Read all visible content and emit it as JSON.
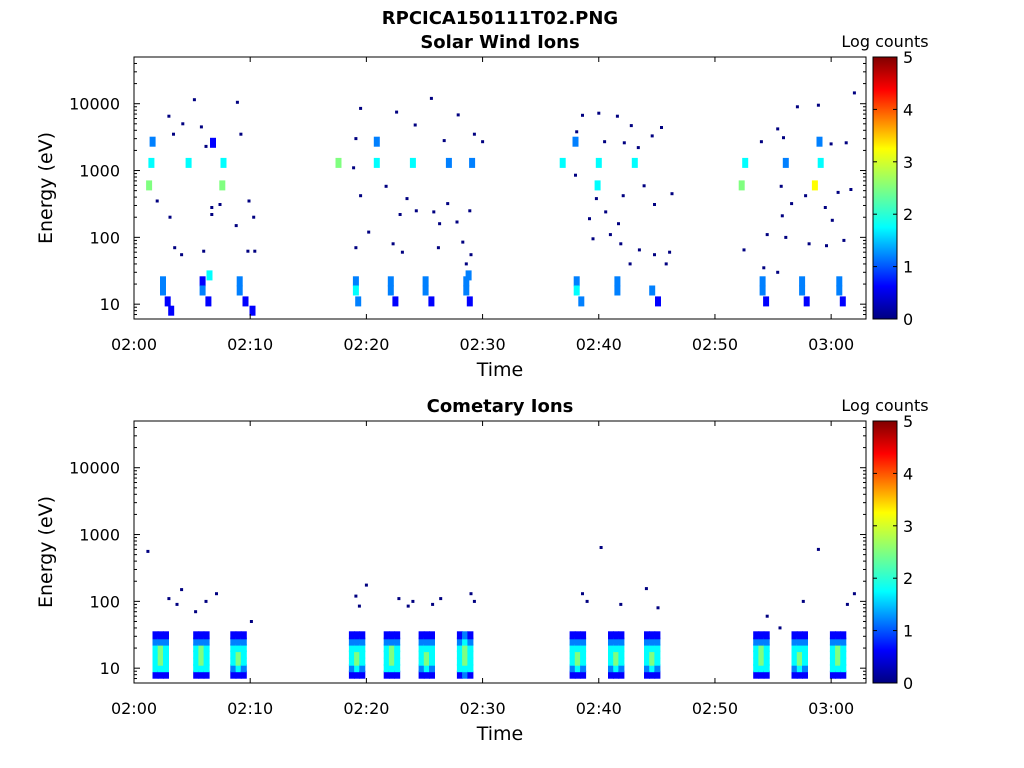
{
  "figure_title": "RPCICA150111T02.PNG",
  "colormap": [
    "#000080",
    "#0000ff",
    "#0080ff",
    "#00ffff",
    "#80ff80",
    "#ffff00",
    "#ff8000",
    "#ff0000",
    "#800000"
  ],
  "chart_data": [
    {
      "type": "heatmap",
      "title": "Solar Wind Ions",
      "xlabel": "Time",
      "ylabel": "Energy (eV)",
      "yscale": "log",
      "ylim": [
        6,
        50000
      ],
      "xlim_minutes": [
        0,
        63
      ],
      "x_tick_labels": [
        "02:00",
        "02:10",
        "02:20",
        "02:30",
        "02:40",
        "02:50",
        "03:00"
      ],
      "y_tick_labels": [
        "10",
        "100",
        "1000",
        "10000"
      ],
      "colorbar_label": "Log counts",
      "colorbar_range": [
        0,
        5
      ],
      "colorbar_ticks": [
        "0",
        "1",
        "2",
        "3",
        "4",
        "5"
      ],
      "cells": [
        {
          "t": 2.5,
          "e": 22,
          "v": 1.0
        },
        {
          "t": 2.5,
          "e": 16,
          "v": 1.2
        },
        {
          "t": 2.9,
          "e": 11,
          "v": 0.6
        },
        {
          "t": 3.2,
          "e": 8,
          "v": 0.9
        },
        {
          "t": 5.9,
          "e": 22,
          "v": 0.9
        },
        {
          "t": 5.9,
          "e": 16,
          "v": 1.1
        },
        {
          "t": 6.4,
          "e": 11,
          "v": 0.7
        },
        {
          "t": 6.5,
          "e": 27,
          "v": 2.0
        },
        {
          "t": 9.1,
          "e": 22,
          "v": 1.0
        },
        {
          "t": 9.1,
          "e": 16,
          "v": 1.3
        },
        {
          "t": 9.6,
          "e": 11,
          "v": 0.6
        },
        {
          "t": 10.2,
          "e": 8,
          "v": 0.5
        },
        {
          "t": 19.1,
          "e": 22,
          "v": 1.1
        },
        {
          "t": 19.1,
          "e": 16,
          "v": 1.9
        },
        {
          "t": 19.3,
          "e": 11,
          "v": 1.2
        },
        {
          "t": 22.1,
          "e": 22,
          "v": 1.0
        },
        {
          "t": 22.1,
          "e": 16,
          "v": 1.3
        },
        {
          "t": 22.5,
          "e": 11,
          "v": 0.6
        },
        {
          "t": 25.1,
          "e": 22,
          "v": 1.0
        },
        {
          "t": 25.1,
          "e": 16,
          "v": 1.2
        },
        {
          "t": 25.6,
          "e": 11,
          "v": 0.8
        },
        {
          "t": 28.6,
          "e": 22,
          "v": 1.0
        },
        {
          "t": 28.6,
          "e": 16,
          "v": 1.2
        },
        {
          "t": 28.9,
          "e": 11,
          "v": 0.9
        },
        {
          "t": 28.8,
          "e": 27,
          "v": 1.4
        },
        {
          "t": 38.1,
          "e": 22,
          "v": 1.1
        },
        {
          "t": 38.1,
          "e": 16,
          "v": 1.9
        },
        {
          "t": 38.5,
          "e": 11,
          "v": 1.1
        },
        {
          "t": 41.6,
          "e": 22,
          "v": 1.0
        },
        {
          "t": 41.6,
          "e": 16,
          "v": 1.2
        },
        {
          "t": 44.6,
          "e": 16,
          "v": 1.0
        },
        {
          "t": 45.1,
          "e": 11,
          "v": 0.6
        },
        {
          "t": 54.1,
          "e": 22,
          "v": 1.0
        },
        {
          "t": 54.1,
          "e": 16,
          "v": 1.3
        },
        {
          "t": 54.4,
          "e": 11,
          "v": 0.8
        },
        {
          "t": 57.5,
          "e": 22,
          "v": 1.0
        },
        {
          "t": 57.5,
          "e": 16,
          "v": 1.2
        },
        {
          "t": 57.9,
          "e": 11,
          "v": 0.6
        },
        {
          "t": 60.7,
          "e": 22,
          "v": 1.0
        },
        {
          "t": 60.7,
          "e": 16,
          "v": 1.4
        },
        {
          "t": 61.0,
          "e": 11,
          "v": 0.8
        },
        {
          "t": 1.5,
          "e": 1300,
          "v": 2.0
        },
        {
          "t": 1.3,
          "e": 600,
          "v": 2.4
        },
        {
          "t": 1.6,
          "e": 2700,
          "v": 1.0
        },
        {
          "t": 4.7,
          "e": 1300,
          "v": 1.8
        },
        {
          "t": 7.7,
          "e": 1300,
          "v": 1.7
        },
        {
          "t": 7.6,
          "e": 600,
          "v": 2.2
        },
        {
          "t": 6.8,
          "e": 2600,
          "v": 0.7
        },
        {
          "t": 17.6,
          "e": 1300,
          "v": 2.2
        },
        {
          "t": 20.9,
          "e": 1300,
          "v": 1.9
        },
        {
          "t": 20.9,
          "e": 2700,
          "v": 1.0
        },
        {
          "t": 24.0,
          "e": 1300,
          "v": 1.7
        },
        {
          "t": 27.1,
          "e": 1300,
          "v": 1.1
        },
        {
          "t": 29.1,
          "e": 1300,
          "v": 1.3
        },
        {
          "t": 36.9,
          "e": 1300,
          "v": 2.0
        },
        {
          "t": 38.0,
          "e": 2700,
          "v": 1.1
        },
        {
          "t": 40.0,
          "e": 1300,
          "v": 1.6
        },
        {
          "t": 39.9,
          "e": 600,
          "v": 2.1
        },
        {
          "t": 43.1,
          "e": 1300,
          "v": 1.8
        },
        {
          "t": 52.6,
          "e": 1300,
          "v": 2.0
        },
        {
          "t": 52.3,
          "e": 600,
          "v": 2.6
        },
        {
          "t": 56.1,
          "e": 1300,
          "v": 1.0
        },
        {
          "t": 59.1,
          "e": 1300,
          "v": 1.9
        },
        {
          "t": 59.0,
          "e": 2700,
          "v": 1.1
        },
        {
          "t": 58.6,
          "e": 600,
          "v": 2.9
        }
      ],
      "sparse_points": [
        [
          3,
          6500
        ],
        [
          3.4,
          3500
        ],
        [
          2,
          350
        ],
        [
          3.1,
          200
        ],
        [
          4.2,
          5000
        ],
        [
          5.2,
          11500
        ],
        [
          5.8,
          4500
        ],
        [
          8.9,
          10500
        ],
        [
          9.2,
          3500
        ],
        [
          9.9,
          350
        ],
        [
          10.3,
          200
        ],
        [
          3.5,
          70
        ],
        [
          4.1,
          55
        ],
        [
          6,
          62
        ],
        [
          9.8,
          62
        ],
        [
          10.4,
          62
        ],
        [
          6.7,
          280
        ],
        [
          7.4,
          310
        ],
        [
          6.7,
          220
        ],
        [
          8.8,
          150
        ],
        [
          6.2,
          2300
        ],
        [
          19.1,
          3000
        ],
        [
          19.5,
          8500
        ],
        [
          22.6,
          7500
        ],
        [
          24.2,
          4800
        ],
        [
          25.6,
          12000
        ],
        [
          26.7,
          2800
        ],
        [
          27.9,
          6800
        ],
        [
          29.3,
          3500
        ],
        [
          30.0,
          2700
        ],
        [
          18.9,
          1100
        ],
        [
          19.5,
          420
        ],
        [
          21.7,
          580
        ],
        [
          23.5,
          380
        ],
        [
          22.9,
          220
        ],
        [
          24.3,
          250
        ],
        [
          25.8,
          240
        ],
        [
          26.3,
          160
        ],
        [
          27.0,
          320
        ],
        [
          27.8,
          170
        ],
        [
          28.9,
          250
        ],
        [
          19.1,
          70
        ],
        [
          22.3,
          80
        ],
        [
          23.1,
          60
        ],
        [
          26.2,
          70
        ],
        [
          28.3,
          85
        ],
        [
          29.0,
          55
        ],
        [
          28.6,
          40
        ],
        [
          20.2,
          120
        ],
        [
          38.1,
          3800
        ],
        [
          38.6,
          6700
        ],
        [
          40.0,
          7200
        ],
        [
          41.6,
          6500
        ],
        [
          42.8,
          4700
        ],
        [
          45.4,
          4400
        ],
        [
          44.6,
          3300
        ],
        [
          40.5,
          2700
        ],
        [
          42.2,
          2600
        ],
        [
          43.4,
          2200
        ],
        [
          38.0,
          850
        ],
        [
          39.8,
          380
        ],
        [
          40.6,
          240
        ],
        [
          42.1,
          420
        ],
        [
          43.9,
          590
        ],
        [
          44.8,
          310
        ],
        [
          46.3,
          450
        ],
        [
          39.2,
          190
        ],
        [
          41.7,
          160
        ],
        [
          39.5,
          95
        ],
        [
          41.0,
          110
        ],
        [
          41.9,
          80
        ],
        [
          43.5,
          65
        ],
        [
          44.8,
          55
        ],
        [
          45.8,
          40
        ],
        [
          46.1,
          60
        ],
        [
          42.7,
          40
        ],
        [
          54.0,
          2700
        ],
        [
          55.9,
          3100
        ],
        [
          57.1,
          9000
        ],
        [
          58.9,
          9500
        ],
        [
          60.0,
          2500
        ],
        [
          61.3,
          2600
        ],
        [
          62.0,
          14500
        ],
        [
          55.4,
          4200
        ],
        [
          55.7,
          580
        ],
        [
          56.6,
          320
        ],
        [
          57.8,
          420
        ],
        [
          59.5,
          280
        ],
        [
          60.6,
          470
        ],
        [
          61.7,
          520
        ],
        [
          60.1,
          180
        ],
        [
          55.8,
          210
        ],
        [
          52.5,
          65
        ],
        [
          54.5,
          110
        ],
        [
          56.1,
          100
        ],
        [
          58.1,
          80
        ],
        [
          59.6,
          75
        ],
        [
          61.1,
          90
        ],
        [
          54.2,
          35
        ],
        [
          55.4,
          30
        ]
      ]
    },
    {
      "type": "heatmap",
      "title": "Cometary Ions",
      "xlabel": "Time",
      "ylabel": "Energy (eV)",
      "yscale": "log",
      "ylim": [
        6,
        50000
      ],
      "xlim_minutes": [
        0,
        63
      ],
      "x_tick_labels": [
        "02:00",
        "02:10",
        "02:20",
        "02:30",
        "02:40",
        "02:50",
        "03:00"
      ],
      "y_tick_labels": [
        "10",
        "100",
        "1000",
        "10000"
      ],
      "colorbar_label": "Log counts",
      "colorbar_range": [
        0,
        5
      ],
      "colorbar_ticks": [
        "0",
        "1",
        "2",
        "3",
        "4",
        "5"
      ],
      "bursts": [
        {
          "t": 2.3,
          "peak": 2.6
        },
        {
          "t": 5.8,
          "peak": 2.5
        },
        {
          "t": 9.0,
          "peak": 2.3
        },
        {
          "t": 19.2,
          "peak": 2.2
        },
        {
          "t": 22.2,
          "peak": 2.5
        },
        {
          "t": 25.2,
          "peak": 2.4
        },
        {
          "t": 28.5,
          "peak": 2.7
        },
        {
          "t": 38.2,
          "peak": 2.2
        },
        {
          "t": 41.5,
          "peak": 2.4
        },
        {
          "t": 44.6,
          "peak": 2.3
        },
        {
          "t": 54.0,
          "peak": 2.5
        },
        {
          "t": 57.3,
          "peak": 2.4
        },
        {
          "t": 60.6,
          "peak": 2.6
        }
      ],
      "sparse_points": [
        [
          1.2,
          560
        ],
        [
          3.0,
          110
        ],
        [
          4.1,
          150
        ],
        [
          3.7,
          90
        ],
        [
          6.2,
          100
        ],
        [
          7.1,
          130
        ],
        [
          5.3,
          70
        ],
        [
          10.1,
          50
        ],
        [
          19.1,
          120
        ],
        [
          19.4,
          85
        ],
        [
          20.0,
          175
        ],
        [
          22.8,
          110
        ],
        [
          23.6,
          85
        ],
        [
          24.0,
          100
        ],
        [
          26.4,
          110
        ],
        [
          25.7,
          90
        ],
        [
          29.0,
          130
        ],
        [
          29.3,
          100
        ],
        [
          39.0,
          100
        ],
        [
          38.6,
          130
        ],
        [
          40.2,
          640
        ],
        [
          41.9,
          90
        ],
        [
          44.1,
          155
        ],
        [
          45.1,
          80
        ],
        [
          54.5,
          60
        ],
        [
          55.6,
          40
        ],
        [
          57.6,
          100
        ],
        [
          58.9,
          600
        ],
        [
          62.0,
          130
        ],
        [
          61.4,
          90
        ]
      ]
    }
  ]
}
